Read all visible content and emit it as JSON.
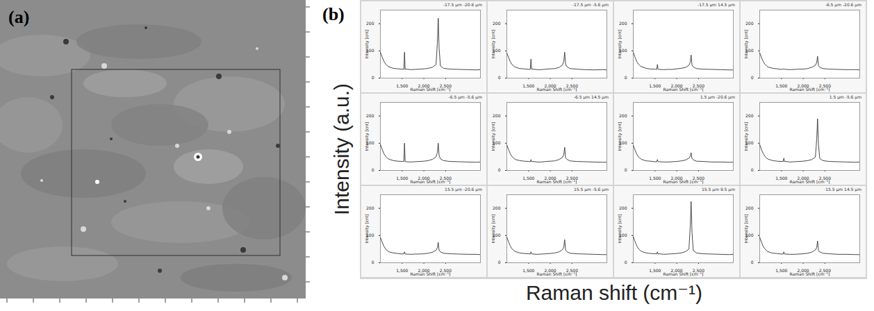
{
  "figure": {
    "panel_labels": [
      "(a)",
      "(b)"
    ],
    "y_label": "Intensity (a.u.)",
    "x_label": "Raman shift (cm⁻¹)"
  },
  "chart_data": [
    {
      "type": "line",
      "title": "-17.5 µm -20.6 µm",
      "x_label": "Raman Shift [cm⁻¹]",
      "y_label": "Intensity [cnt]",
      "color": "#333333",
      "grid": true,
      "xlim": [
        1000,
        3300
      ],
      "ylim": [
        0,
        250
      ],
      "xticks": [
        {
          "value": 1500,
          "label": "1,500"
        },
        {
          "value": 2000,
          "label": "2,000"
        },
        {
          "value": 2500,
          "label": "2,500"
        }
      ],
      "yticks": [
        0,
        100,
        200
      ],
      "x": [
        1000,
        1040,
        1080,
        1120,
        1160,
        1200,
        1300,
        1400,
        1500,
        1540,
        1555,
        1570,
        1600,
        1700,
        1800,
        1900,
        2000,
        2100,
        2200,
        2280,
        2310,
        2330,
        2350,
        2380,
        2450,
        2600,
        2800,
        3000,
        3200,
        3300
      ],
      "values": [
        95,
        78,
        62,
        52,
        45,
        41,
        36,
        34,
        33,
        32,
        95,
        32,
        33,
        31,
        32,
        33,
        34,
        36,
        40,
        50,
        130,
        220,
        110,
        45,
        36,
        33,
        32,
        31,
        30,
        31
      ]
    },
    {
      "type": "line",
      "title": "-17.5 µm -5.6 µm",
      "x_label": "Raman Shift [cm⁻¹]",
      "y_label": "Intensity [cnt]",
      "color": "#333333",
      "grid": true,
      "xlim": [
        1000,
        3300
      ],
      "ylim": [
        0,
        250
      ],
      "xticks": [
        {
          "value": 1500,
          "label": "1,500"
        },
        {
          "value": 2000,
          "label": "2,000"
        },
        {
          "value": 2500,
          "label": "2,500"
        }
      ],
      "yticks": [
        0,
        100,
        200
      ],
      "x": [
        1000,
        1040,
        1080,
        1120,
        1160,
        1200,
        1300,
        1400,
        1500,
        1540,
        1555,
        1570,
        1600,
        1700,
        1800,
        1900,
        2000,
        2100,
        2200,
        2280,
        2310,
        2330,
        2350,
        2380,
        2450,
        2600,
        2800,
        3000,
        3200,
        3300
      ],
      "values": [
        92,
        76,
        60,
        50,
        44,
        40,
        35,
        34,
        32,
        33,
        70,
        32,
        33,
        31,
        31,
        33,
        34,
        35,
        39,
        48,
        62,
        95,
        52,
        42,
        35,
        33,
        31,
        30,
        31,
        30
      ]
    },
    {
      "type": "line",
      "title": "-17.5 µm 14.5 µm",
      "x_label": "Raman Shift [cm⁻¹]",
      "y_label": "Intensity [cnt]",
      "color": "#333333",
      "grid": true,
      "xlim": [
        1000,
        3300
      ],
      "ylim": [
        0,
        250
      ],
      "xticks": [
        {
          "value": 1500,
          "label": "1,500"
        },
        {
          "value": 2000,
          "label": "2,000"
        },
        {
          "value": 2500,
          "label": "2,500"
        }
      ],
      "yticks": [
        0,
        100,
        200
      ],
      "x": [
        1000,
        1040,
        1080,
        1120,
        1160,
        1200,
        1300,
        1400,
        1500,
        1540,
        1555,
        1570,
        1600,
        1700,
        1800,
        1900,
        2000,
        2100,
        2200,
        2280,
        2310,
        2330,
        2350,
        2380,
        2450,
        2600,
        2800,
        3000,
        3200,
        3300
      ],
      "values": [
        94,
        77,
        61,
        51,
        45,
        41,
        36,
        33,
        33,
        32,
        50,
        33,
        32,
        31,
        32,
        32,
        34,
        36,
        39,
        47,
        58,
        85,
        48,
        41,
        35,
        33,
        32,
        31,
        30,
        30
      ]
    },
    {
      "type": "line",
      "title": "-6.5 µm -20.6 µm",
      "x_label": "Raman Shift [cm⁻¹]",
      "y_label": "Intensity [cnt]",
      "color": "#333333",
      "grid": true,
      "xlim": [
        1000,
        3300
      ],
      "ylim": [
        0,
        250
      ],
      "xticks": [
        {
          "value": 1500,
          "label": "1,500"
        },
        {
          "value": 2000,
          "label": "2,000"
        },
        {
          "value": 2500,
          "label": "2,500"
        }
      ],
      "yticks": [
        0,
        100,
        200
      ],
      "x": [
        1000,
        1040,
        1080,
        1120,
        1160,
        1200,
        1300,
        1400,
        1500,
        1540,
        1555,
        1570,
        1600,
        1700,
        1800,
        1900,
        2000,
        2100,
        2200,
        2280,
        2310,
        2330,
        2350,
        2380,
        2450,
        2600,
        2800,
        3000,
        3200,
        3300
      ],
      "values": [
        93,
        76,
        61,
        51,
        44,
        40,
        36,
        34,
        32,
        33,
        35,
        32,
        32,
        31,
        32,
        33,
        33,
        35,
        40,
        47,
        57,
        80,
        46,
        40,
        35,
        33,
        32,
        31,
        31,
        30
      ]
    },
    {
      "type": "line",
      "title": "-6.5 µm -5.6 µm",
      "x_label": "Raman Shift [cm⁻¹]",
      "y_label": "Intensity [cnt]",
      "color": "#333333",
      "grid": true,
      "xlim": [
        1000,
        3300
      ],
      "ylim": [
        0,
        250
      ],
      "xticks": [
        {
          "value": 1500,
          "label": "1,500"
        },
        {
          "value": 2000,
          "label": "2,000"
        },
        {
          "value": 2500,
          "label": "2,500"
        }
      ],
      "yticks": [
        0,
        100,
        200
      ],
      "x": [
        1000,
        1040,
        1080,
        1120,
        1160,
        1200,
        1300,
        1400,
        1500,
        1540,
        1555,
        1570,
        1600,
        1700,
        1800,
        1900,
        2000,
        2100,
        2200,
        2280,
        2310,
        2330,
        2350,
        2380,
        2450,
        2600,
        2800,
        3000,
        3200,
        3300
      ],
      "values": [
        96,
        78,
        62,
        52,
        45,
        41,
        36,
        34,
        33,
        33,
        100,
        33,
        32,
        31,
        32,
        33,
        34,
        36,
        41,
        50,
        66,
        100,
        55,
        43,
        36,
        33,
        32,
        31,
        30,
        31
      ]
    },
    {
      "type": "line",
      "title": "-6.5 µm 14.5 µm",
      "x_label": "Raman Shift [cm⁻¹]",
      "y_label": "Intensity [cnt]",
      "color": "#333333",
      "grid": true,
      "xlim": [
        1000,
        3300
      ],
      "ylim": [
        0,
        250
      ],
      "xticks": [
        {
          "value": 1500,
          "label": "1,500"
        },
        {
          "value": 2000,
          "label": "2,000"
        },
        {
          "value": 2500,
          "label": "2,500"
        }
      ],
      "yticks": [
        0,
        100,
        200
      ],
      "x": [
        1000,
        1040,
        1080,
        1120,
        1160,
        1200,
        1300,
        1400,
        1500,
        1540,
        1555,
        1570,
        1600,
        1700,
        1800,
        1900,
        2000,
        2100,
        2200,
        2280,
        2310,
        2330,
        2350,
        2380,
        2450,
        2600,
        2800,
        3000,
        3200,
        3300
      ],
      "values": [
        93,
        77,
        61,
        51,
        45,
        40,
        36,
        34,
        33,
        32,
        40,
        32,
        33,
        31,
        31,
        33,
        34,
        35,
        40,
        48,
        58,
        85,
        47,
        41,
        35,
        33,
        32,
        31,
        30,
        30
      ]
    },
    {
      "type": "line",
      "title": "1.5 µm -20.6 µm",
      "x_label": "Raman Shift [cm⁻¹]",
      "y_label": "Intensity [cnt]",
      "color": "#333333",
      "grid": true,
      "xlim": [
        1000,
        3300
      ],
      "ylim": [
        0,
        250
      ],
      "xticks": [
        {
          "value": 1500,
          "label": "1,500"
        },
        {
          "value": 2000,
          "label": "2,000"
        },
        {
          "value": 2500,
          "label": "2,500"
        }
      ],
      "yticks": [
        0,
        100,
        200
      ],
      "x": [
        1000,
        1040,
        1080,
        1120,
        1160,
        1200,
        1300,
        1400,
        1500,
        1540,
        1555,
        1570,
        1600,
        1700,
        1800,
        1900,
        2000,
        2100,
        2200,
        2280,
        2310,
        2330,
        2350,
        2380,
        2450,
        2600,
        2800,
        3000,
        3200,
        3300
      ],
      "values": [
        92,
        75,
        60,
        50,
        44,
        40,
        35,
        34,
        32,
        32,
        40,
        33,
        32,
        31,
        31,
        32,
        33,
        35,
        38,
        45,
        52,
        65,
        44,
        39,
        34,
        33,
        31,
        31,
        30,
        30
      ]
    },
    {
      "type": "line",
      "title": "1.5 µm -5.6 µm",
      "x_label": "Raman Shift [cm⁻¹]",
      "y_label": "Intensity [cnt]",
      "color": "#333333",
      "grid": true,
      "xlim": [
        1000,
        3300
      ],
      "ylim": [
        0,
        250
      ],
      "xticks": [
        {
          "value": 1500,
          "label": "1,500"
        },
        {
          "value": 2000,
          "label": "2,000"
        },
        {
          "value": 2500,
          "label": "2,500"
        }
      ],
      "yticks": [
        0,
        100,
        200
      ],
      "x": [
        1000,
        1040,
        1080,
        1120,
        1160,
        1200,
        1300,
        1400,
        1500,
        1540,
        1555,
        1570,
        1600,
        1700,
        1800,
        1900,
        2000,
        2100,
        2200,
        2280,
        2310,
        2330,
        2350,
        2380,
        2450,
        2600,
        2800,
        3000,
        3200,
        3300
      ],
      "values": [
        95,
        77,
        62,
        52,
        45,
        41,
        36,
        34,
        33,
        33,
        45,
        32,
        33,
        31,
        32,
        33,
        34,
        36,
        40,
        49,
        115,
        190,
        98,
        44,
        36,
        33,
        32,
        31,
        30,
        31
      ]
    },
    {
      "type": "line",
      "title": "15.5 µm -20.6 µm",
      "x_label": "Raman Shift [cm⁻¹]",
      "y_label": "Intensity [cnt]",
      "color": "#333333",
      "grid": true,
      "xlim": [
        1000,
        3300
      ],
      "ylim": [
        0,
        250
      ],
      "xticks": [
        {
          "value": 1500,
          "label": "1,500"
        },
        {
          "value": 2000,
          "label": "2,000"
        },
        {
          "value": 2500,
          "label": "2,500"
        }
      ],
      "yticks": [
        0,
        100,
        200
      ],
      "x": [
        1000,
        1040,
        1080,
        1120,
        1160,
        1200,
        1300,
        1400,
        1500,
        1540,
        1555,
        1570,
        1600,
        1700,
        1800,
        1900,
        2000,
        2100,
        2200,
        2280,
        2310,
        2330,
        2350,
        2380,
        2450,
        2600,
        2800,
        3000,
        3200,
        3300
      ],
      "values": [
        93,
        76,
        61,
        51,
        44,
        40,
        36,
        34,
        32,
        33,
        40,
        32,
        32,
        31,
        32,
        32,
        33,
        35,
        39,
        46,
        55,
        75,
        45,
        40,
        35,
        33,
        32,
        31,
        31,
        30
      ]
    },
    {
      "type": "line",
      "title": "15.5 µm -5.6 µm",
      "x_label": "Raman Shift [cm⁻¹]",
      "y_label": "Intensity [cnt]",
      "color": "#333333",
      "grid": true,
      "xlim": [
        1000,
        3300
      ],
      "ylim": [
        0,
        250
      ],
      "xticks": [
        {
          "value": 1500,
          "label": "1,500"
        },
        {
          "value": 2000,
          "label": "2,000"
        },
        {
          "value": 2500,
          "label": "2,500"
        }
      ],
      "yticks": [
        0,
        100,
        200
      ],
      "x": [
        1000,
        1040,
        1080,
        1120,
        1160,
        1200,
        1300,
        1400,
        1500,
        1540,
        1555,
        1570,
        1600,
        1700,
        1800,
        1900,
        2000,
        2100,
        2200,
        2280,
        2310,
        2330,
        2350,
        2380,
        2450,
        2600,
        2800,
        3000,
        3200,
        3300
      ],
      "values": [
        94,
        77,
        61,
        51,
        45,
        41,
        36,
        34,
        33,
        32,
        40,
        33,
        32,
        31,
        32,
        33,
        34,
        36,
        40,
        48,
        58,
        85,
        47,
        41,
        35,
        33,
        32,
        31,
        30,
        30
      ]
    },
    {
      "type": "line",
      "title": "15.5 µm 9.5 µm",
      "x_label": "Raman Shift [cm⁻¹]",
      "y_label": "Intensity [cnt]",
      "color": "#333333",
      "grid": true,
      "xlim": [
        1000,
        3300
      ],
      "ylim": [
        0,
        250
      ],
      "xticks": [
        {
          "value": 1500,
          "label": "1,500"
        },
        {
          "value": 2000,
          "label": "2,000"
        },
        {
          "value": 2500,
          "label": "2,500"
        }
      ],
      "yticks": [
        0,
        100,
        200
      ],
      "x": [
        1000,
        1040,
        1080,
        1120,
        1160,
        1200,
        1300,
        1400,
        1500,
        1540,
        1555,
        1570,
        1600,
        1700,
        1800,
        1900,
        2000,
        2100,
        2200,
        2280,
        2310,
        2330,
        2350,
        2380,
        2450,
        2600,
        2800,
        3000,
        3200,
        3300
      ],
      "values": [
        96,
        78,
        62,
        52,
        45,
        41,
        36,
        34,
        33,
        33,
        40,
        32,
        33,
        31,
        32,
        33,
        34,
        36,
        41,
        50,
        135,
        225,
        112,
        45,
        36,
        33,
        32,
        31,
        30,
        31
      ]
    },
    {
      "type": "line",
      "title": "15.5 µm 14.5 µm",
      "x_label": "Raman Shift [cm⁻¹]",
      "y_label": "Intensity [cnt]",
      "color": "#333333",
      "grid": true,
      "xlim": [
        1000,
        3300
      ],
      "ylim": [
        0,
        250
      ],
      "xticks": [
        {
          "value": 1500,
          "label": "1,500"
        },
        {
          "value": 2000,
          "label": "2,000"
        },
        {
          "value": 2500,
          "label": "2,500"
        }
      ],
      "yticks": [
        0,
        100,
        200
      ],
      "x": [
        1000,
        1040,
        1080,
        1120,
        1160,
        1200,
        1300,
        1400,
        1500,
        1540,
        1555,
        1570,
        1600,
        1700,
        1800,
        1900,
        2000,
        2100,
        2200,
        2280,
        2310,
        2330,
        2350,
        2380,
        2450,
        2600,
        2800,
        3000,
        3200,
        3300
      ],
      "values": [
        93,
        76,
        60,
        51,
        44,
        40,
        35,
        34,
        32,
        32,
        40,
        32,
        32,
        31,
        31,
        32,
        33,
        35,
        39,
        47,
        56,
        80,
        46,
        40,
        35,
        33,
        31,
        31,
        30,
        30
      ]
    }
  ]
}
